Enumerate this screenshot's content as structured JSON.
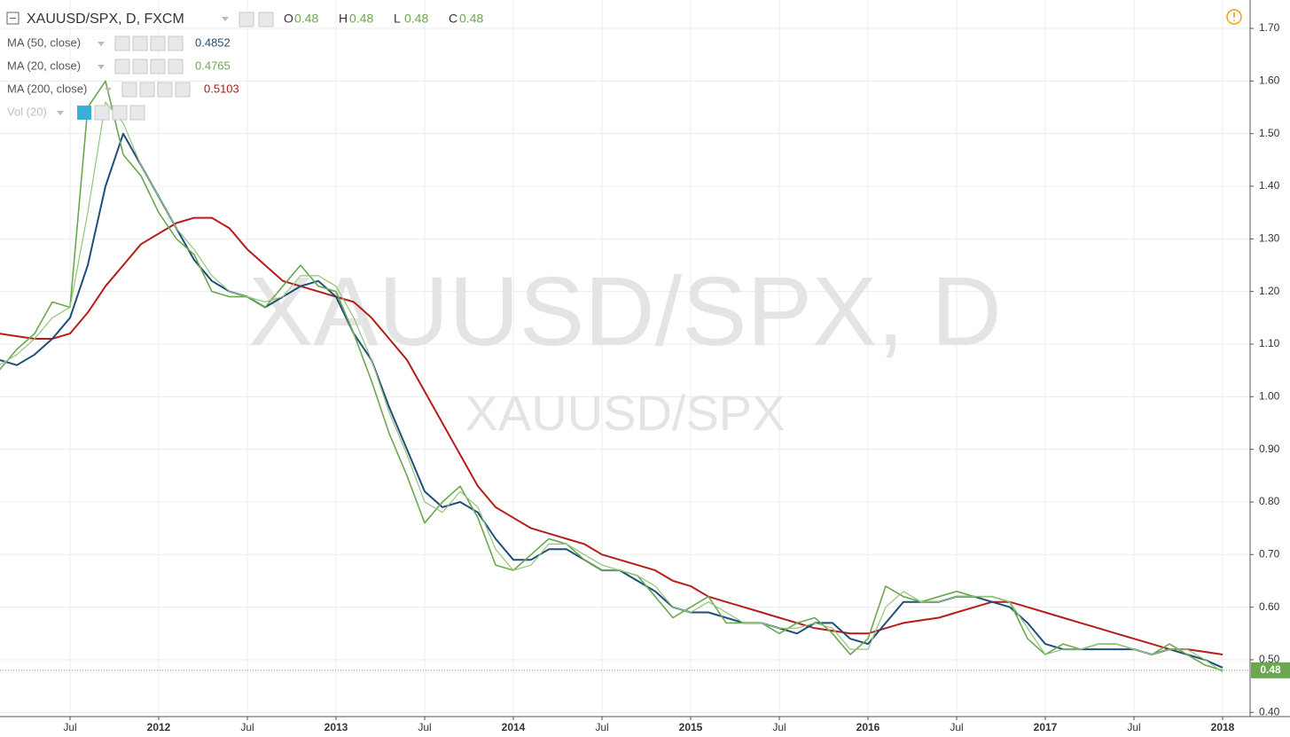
{
  "chart_data": {
    "type": "line",
    "title": "XAUUSD/SPX, D, FXCM",
    "watermark": "XAUUSD/SPX, D",
    "ohlc": [
      {
        "label": "O",
        "value": 0.48
      },
      {
        "label": "H",
        "value": 0.48
      },
      {
        "label": "L",
        "value": 0.48
      },
      {
        "label": "C",
        "value": 0.48
      }
    ],
    "hidden_indicator": "Vol (20)",
    "last_price": 0.48,
    "x": [
      2011.1,
      2011.2,
      2011.3,
      2011.4,
      2011.5,
      2011.6,
      2011.7,
      2011.8,
      2011.9,
      2012.0,
      2012.1,
      2012.2,
      2012.3,
      2012.4,
      2012.5,
      2012.6,
      2012.7,
      2012.8,
      2012.9,
      2013.0,
      2013.1,
      2013.2,
      2013.3,
      2013.4,
      2013.5,
      2013.6,
      2013.7,
      2013.8,
      2013.9,
      2014.0,
      2014.1,
      2014.2,
      2014.3,
      2014.4,
      2014.5,
      2014.6,
      2014.7,
      2014.8,
      2014.9,
      2015.0,
      2015.1,
      2015.2,
      2015.3,
      2015.4,
      2015.5,
      2015.6,
      2015.7,
      2015.8,
      2015.9,
      2016.0,
      2016.1,
      2016.2,
      2016.3,
      2016.4,
      2016.5,
      2016.6,
      2016.7,
      2016.8,
      2016.9,
      2017.0,
      2017.1,
      2017.2,
      2017.3,
      2017.4,
      2017.5,
      2017.6,
      2017.7,
      2017.8,
      2017.9,
      2018.0
    ],
    "series": [
      {
        "name": "XAUUSD/SPX",
        "color": "#6aa84f",
        "width": 1.6,
        "values": [
          1.05,
          1.09,
          1.12,
          1.18,
          1.17,
          1.55,
          1.6,
          1.46,
          1.42,
          1.35,
          1.3,
          1.27,
          1.2,
          1.19,
          1.19,
          1.17,
          1.21,
          1.25,
          1.21,
          1.2,
          1.12,
          1.03,
          0.93,
          0.85,
          0.76,
          0.8,
          0.83,
          0.77,
          0.68,
          0.67,
          0.7,
          0.73,
          0.72,
          0.69,
          0.67,
          0.67,
          0.66,
          0.62,
          0.58,
          0.6,
          0.62,
          0.57,
          0.57,
          0.57,
          0.55,
          0.57,
          0.58,
          0.55,
          0.51,
          0.54,
          0.64,
          0.62,
          0.61,
          0.62,
          0.63,
          0.62,
          0.62,
          0.61,
          0.54,
          0.51,
          0.53,
          0.52,
          0.53,
          0.53,
          0.52,
          0.51,
          0.53,
          0.51,
          0.49,
          0.48
        ]
      },
      {
        "name": "MA (50, close)",
        "color": "#1f4e79",
        "width": 2,
        "last_value": 0.4852,
        "values": [
          1.07,
          1.06,
          1.08,
          1.11,
          1.15,
          1.25,
          1.4,
          1.5,
          1.44,
          1.38,
          1.32,
          1.26,
          1.22,
          1.2,
          1.19,
          1.17,
          1.19,
          1.21,
          1.22,
          1.19,
          1.12,
          1.07,
          0.98,
          0.9,
          0.82,
          0.79,
          0.8,
          0.78,
          0.73,
          0.69,
          0.69,
          0.71,
          0.71,
          0.69,
          0.67,
          0.67,
          0.65,
          0.63,
          0.6,
          0.59,
          0.59,
          0.58,
          0.57,
          0.57,
          0.56,
          0.55,
          0.57,
          0.57,
          0.54,
          0.53,
          0.57,
          0.61,
          0.61,
          0.61,
          0.62,
          0.62,
          0.61,
          0.6,
          0.57,
          0.53,
          0.52,
          0.52,
          0.52,
          0.52,
          0.52,
          0.51,
          0.52,
          0.51,
          0.5,
          0.485
        ]
      },
      {
        "name": "MA (20, close)",
        "color": "#93c47d",
        "width": 1.2,
        "last_value": 0.4765,
        "values": [
          1.06,
          1.08,
          1.11,
          1.15,
          1.17,
          1.35,
          1.56,
          1.52,
          1.44,
          1.38,
          1.32,
          1.28,
          1.23,
          1.2,
          1.19,
          1.18,
          1.19,
          1.23,
          1.23,
          1.21,
          1.15,
          1.07,
          0.97,
          0.89,
          0.8,
          0.78,
          0.82,
          0.79,
          0.71,
          0.67,
          0.68,
          0.72,
          0.72,
          0.7,
          0.68,
          0.67,
          0.66,
          0.64,
          0.6,
          0.59,
          0.61,
          0.59,
          0.57,
          0.57,
          0.56,
          0.56,
          0.57,
          0.56,
          0.52,
          0.52,
          0.6,
          0.63,
          0.61,
          0.61,
          0.62,
          0.62,
          0.62,
          0.61,
          0.56,
          0.51,
          0.52,
          0.52,
          0.53,
          0.53,
          0.52,
          0.51,
          0.52,
          0.52,
          0.5,
          0.477
        ]
      },
      {
        "name": "MA (200, close)",
        "color": "#b71c1c",
        "width": 2,
        "last_value": 0.5103,
        "values": [
          1.12,
          1.115,
          1.11,
          1.11,
          1.12,
          1.16,
          1.21,
          1.25,
          1.29,
          1.31,
          1.33,
          1.34,
          1.34,
          1.32,
          1.28,
          1.25,
          1.22,
          1.21,
          1.2,
          1.19,
          1.18,
          1.15,
          1.11,
          1.07,
          1.01,
          0.95,
          0.89,
          0.83,
          0.79,
          0.77,
          0.75,
          0.74,
          0.73,
          0.72,
          0.7,
          0.69,
          0.68,
          0.67,
          0.65,
          0.64,
          0.62,
          0.61,
          0.6,
          0.59,
          0.58,
          0.57,
          0.56,
          0.555,
          0.55,
          0.55,
          0.56,
          0.57,
          0.575,
          0.58,
          0.59,
          0.6,
          0.61,
          0.61,
          0.6,
          0.59,
          0.58,
          0.57,
          0.56,
          0.55,
          0.54,
          0.53,
          0.52,
          0.52,
          0.515,
          0.51
        ]
      }
    ],
    "xlim": [
      2011.105,
      2018.155
    ],
    "ylim": [
      0.392,
      1.754
    ],
    "xticks": [
      {
        "value": 2011.5,
        "label": "Jul"
      },
      2012,
      {
        "value": 2012.5,
        "label": "Jul"
      },
      2013,
      {
        "value": 2013.5,
        "label": "Jul"
      },
      2014,
      {
        "value": 2014.5,
        "label": "Jul"
      },
      2015,
      {
        "value": 2015.5,
        "label": "Jul"
      },
      2016,
      {
        "value": 2016.5,
        "label": "Jul"
      },
      2017,
      {
        "value": 2017.5,
        "label": "Jul"
      },
      2018
    ],
    "yticks": [
      {
        "value": 0.4,
        "label": "0.40"
      },
      {
        "value": 0.5,
        "label": "0.50"
      },
      {
        "value": 0.6,
        "label": "0.60"
      },
      {
        "value": 0.7,
        "label": "0.70"
      },
      {
        "value": 0.8,
        "label": "0.80"
      },
      {
        "value": 0.9,
        "label": "0.90"
      },
      {
        "value": 1.0,
        "label": "1.00"
      },
      {
        "value": 1.1,
        "label": "1.10"
      },
      {
        "value": 1.2,
        "label": "1.20"
      },
      {
        "value": 1.3,
        "label": "1.30"
      },
      {
        "value": 1.4,
        "label": "1.40"
      },
      {
        "value": 1.5,
        "label": "1.50"
      },
      {
        "value": 1.6,
        "label": "1.60"
      },
      {
        "value": 1.7,
        "label": "1.70"
      }
    ],
    "grid": true
  }
}
